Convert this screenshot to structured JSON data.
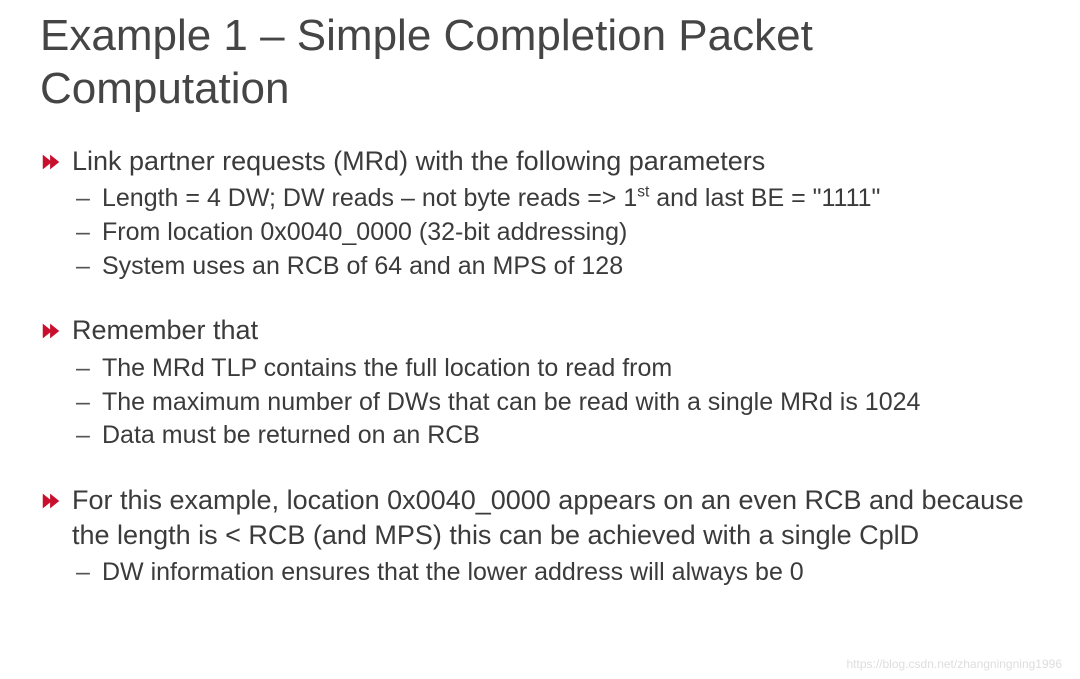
{
  "title": "Example 1 – Simple Completion Packet Computation",
  "title_color": "#454545",
  "title_fontsize": 44,
  "bullet_icon_color": "#c8102e",
  "body_color": "#3b3b3b",
  "dash_glyph": "–",
  "sections": [
    {
      "main_pre": "Link partner requests (MRd) with the following parameters",
      "main_sup": "",
      "main_post": "",
      "subs_pre": [
        "Length = 4 DW; DW reads – not byte reads => 1",
        "From location 0x0040_0000 (32-bit addressing)",
        "System uses an RCB of 64 and an MPS of 128"
      ],
      "subs_sup": [
        "st",
        "",
        ""
      ],
      "subs_post": [
        " and last BE = \"1111\"",
        "",
        ""
      ]
    },
    {
      "main_pre": "Remember that",
      "main_sup": "",
      "main_post": "",
      "subs_pre": [
        "The MRd TLP contains the full location to read from",
        "The maximum number of DWs that can be read with a single MRd is 1024",
        "Data must be returned on an RCB"
      ],
      "subs_sup": [
        "",
        "",
        ""
      ],
      "subs_post": [
        "",
        "",
        ""
      ]
    },
    {
      "main_pre": "For this example, location 0x0040_0000 appears on an even RCB and because the length is < RCB (and MPS) this can be achieved with a single CplD",
      "main_sup": "",
      "main_post": "",
      "subs_pre": [
        "DW information ensures that the lower address will always be 0"
      ],
      "subs_sup": [
        ""
      ],
      "subs_post": [
        ""
      ]
    }
  ],
  "watermark": "https://blog.csdn.net/zhangningning1996"
}
